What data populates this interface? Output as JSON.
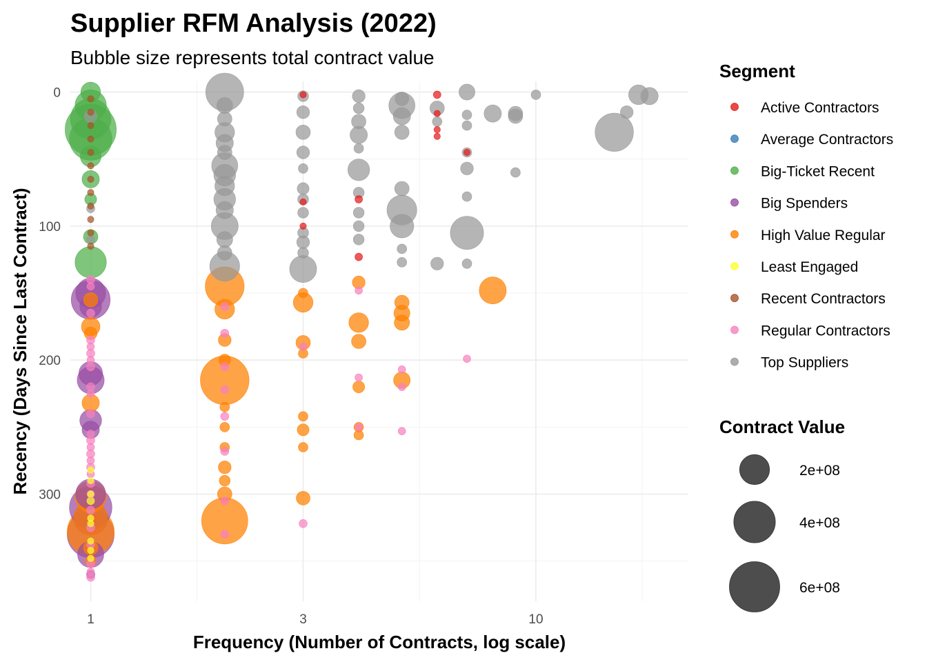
{
  "chart_data": {
    "type": "scatter",
    "title": "Supplier RFM Analysis (2022)",
    "subtitle": "Bubble size represents total contract value",
    "xlabel": "Frequency (Number of Contracts, log scale)",
    "ylabel": "Recency (Days Since Last Contract)",
    "x_scale": "log",
    "y_reversed": true,
    "xlim": [
      0.9,
      22
    ],
    "ylim": [
      -8,
      380
    ],
    "x_ticks": [
      {
        "value": 1,
        "label": "1"
      },
      {
        "value": 3,
        "label": "3"
      },
      {
        "value": 10,
        "label": "10"
      }
    ],
    "y_ticks": [
      {
        "value": 0,
        "label": "0"
      },
      {
        "value": 100,
        "label": "100"
      },
      {
        "value": 200,
        "label": "200"
      },
      {
        "value": 300,
        "label": "300"
      }
    ],
    "grid": true,
    "legend_position": "right",
    "segment_legend_title": "Segment",
    "size_legend_title": "Contract Value",
    "size_legend": [
      {
        "label": "2e+08",
        "value": 200000000
      },
      {
        "label": "4e+08",
        "value": 400000000
      },
      {
        "label": "6e+08",
        "value": 600000000
      }
    ],
    "series": [
      {
        "name": "Active Contractors",
        "color": "#E41A1C",
        "points": [
          [
            3,
            2,
            5000000
          ],
          [
            3,
            82,
            5000000
          ],
          [
            3,
            100,
            5000000
          ],
          [
            4,
            80,
            8000000
          ],
          [
            4,
            123,
            8000000
          ],
          [
            6,
            2,
            8000000
          ],
          [
            6,
            16,
            5000000
          ],
          [
            6,
            28,
            5000000
          ],
          [
            6,
            33,
            5000000
          ],
          [
            7,
            45,
            5000000
          ]
        ]
      },
      {
        "name": "Average Contractors",
        "color": "#377EB8",
        "points": []
      },
      {
        "name": "Big-Ticket Recent",
        "color": "#4DAF4A",
        "points": [
          [
            1,
            0,
            80000000
          ],
          [
            1,
            10,
            220000000
          ],
          [
            1,
            20,
            380000000
          ],
          [
            1,
            28,
            620000000
          ],
          [
            1,
            35,
            420000000
          ],
          [
            1,
            48,
            90000000
          ],
          [
            1,
            65,
            60000000
          ],
          [
            1,
            80,
            25000000
          ],
          [
            1,
            108,
            40000000
          ],
          [
            1,
            127,
            220000000
          ]
        ]
      },
      {
        "name": "Big Spenders",
        "color": "#984EA3",
        "points": [
          [
            1,
            150,
            200000000
          ],
          [
            1,
            155,
            350000000
          ],
          [
            1,
            160,
            100000000
          ],
          [
            1,
            210,
            120000000
          ],
          [
            1,
            215,
            160000000
          ],
          [
            1,
            245,
            100000000
          ],
          [
            1,
            252,
            60000000
          ],
          [
            1,
            300,
            200000000
          ],
          [
            1,
            310,
            420000000
          ],
          [
            1,
            318,
            260000000
          ],
          [
            1,
            330,
            520000000
          ],
          [
            1,
            345,
            150000000
          ],
          [
            1,
            360,
            10000000
          ]
        ]
      },
      {
        "name": "High Value Regular",
        "color": "#FF7F00",
        "points": [
          [
            1,
            155,
            40000000
          ],
          [
            1,
            175,
            70000000
          ],
          [
            1,
            180,
            30000000
          ],
          [
            1,
            232,
            60000000
          ],
          [
            1,
            302,
            220000000
          ],
          [
            1,
            318,
            260000000
          ],
          [
            1,
            328,
            520000000
          ],
          [
            1,
            340,
            40000000
          ],
          [
            1,
            350,
            20000000
          ],
          [
            2,
            145,
            350000000
          ],
          [
            2,
            162,
            80000000
          ],
          [
            2,
            185,
            30000000
          ],
          [
            2,
            200,
            25000000
          ],
          [
            2,
            215,
            560000000
          ],
          [
            2,
            235,
            15000000
          ],
          [
            2,
            250,
            15000000
          ],
          [
            2,
            265,
            15000000
          ],
          [
            2,
            280,
            30000000
          ],
          [
            2,
            290,
            20000000
          ],
          [
            2,
            300,
            40000000
          ],
          [
            2,
            320,
            500000000
          ],
          [
            3,
            150,
            15000000
          ],
          [
            3,
            157,
            80000000
          ],
          [
            3,
            187,
            40000000
          ],
          [
            3,
            195,
            15000000
          ],
          [
            3,
            242,
            15000000
          ],
          [
            3,
            252,
            25000000
          ],
          [
            3,
            265,
            15000000
          ],
          [
            3,
            303,
            35000000
          ],
          [
            4,
            142,
            30000000
          ],
          [
            4,
            172,
            80000000
          ],
          [
            4,
            186,
            40000000
          ],
          [
            4,
            220,
            25000000
          ],
          [
            4,
            250,
            15000000
          ],
          [
            4,
            256,
            15000000
          ],
          [
            5,
            157,
            40000000
          ],
          [
            5,
            165,
            50000000
          ],
          [
            5,
            172,
            45000000
          ],
          [
            5,
            215,
            55000000
          ],
          [
            8,
            148,
            160000000
          ]
        ]
      },
      {
        "name": "Least Engaged",
        "color": "#FFFF33",
        "points": [
          [
            1,
            282,
            5000000
          ],
          [
            1,
            290,
            5000000
          ],
          [
            1,
            300,
            5000000
          ],
          [
            1,
            305,
            8000000
          ],
          [
            1,
            318,
            5000000
          ],
          [
            1,
            322,
            5000000
          ],
          [
            1,
            335,
            5000000
          ],
          [
            1,
            342,
            5000000
          ],
          [
            1,
            348,
            5000000
          ]
        ]
      },
      {
        "name": "Recent Contractors",
        "color": "#A65628",
        "points": [
          [
            1,
            5,
            5000000
          ],
          [
            1,
            15,
            5000000
          ],
          [
            1,
            25,
            5000000
          ],
          [
            1,
            35,
            5000000
          ],
          [
            1,
            45,
            5000000
          ],
          [
            1,
            55,
            5000000
          ],
          [
            1,
            65,
            5000000
          ],
          [
            1,
            75,
            5000000
          ],
          [
            1,
            85,
            5000000
          ],
          [
            1,
            95,
            5000000
          ],
          [
            1,
            105,
            5000000
          ],
          [
            1,
            115,
            5000000
          ]
        ]
      },
      {
        "name": "Regular Contractors",
        "color": "#F781BF",
        "points": [
          [
            1,
            140,
            10000000
          ],
          [
            1,
            145,
            8000000
          ],
          [
            1,
            165,
            10000000
          ],
          [
            1,
            185,
            10000000
          ],
          [
            1,
            190,
            8000000
          ],
          [
            1,
            195,
            10000000
          ],
          [
            1,
            200,
            8000000
          ],
          [
            1,
            205,
            10000000
          ],
          [
            1,
            220,
            10000000
          ],
          [
            1,
            225,
            8000000
          ],
          [
            1,
            240,
            10000000
          ],
          [
            1,
            255,
            8000000
          ],
          [
            1,
            260,
            10000000
          ],
          [
            1,
            265,
            8000000
          ],
          [
            1,
            270,
            10000000
          ],
          [
            1,
            275,
            8000000
          ],
          [
            1,
            280,
            10000000
          ],
          [
            1,
            285,
            8000000
          ],
          [
            1,
            292,
            10000000
          ],
          [
            1,
            300,
            8000000
          ],
          [
            1,
            312,
            10000000
          ],
          [
            1,
            325,
            10000000
          ],
          [
            1,
            338,
            8000000
          ],
          [
            1,
            352,
            10000000
          ],
          [
            1,
            358,
            8000000
          ],
          [
            1,
            362,
            10000000
          ],
          [
            2,
            160,
            10000000
          ],
          [
            2,
            180,
            10000000
          ],
          [
            2,
            205,
            10000000
          ],
          [
            2,
            222,
            10000000
          ],
          [
            2,
            242,
            10000000
          ],
          [
            2,
            268,
            10000000
          ],
          [
            2,
            305,
            10000000
          ],
          [
            2,
            330,
            10000000
          ],
          [
            3,
            190,
            8000000
          ],
          [
            3,
            322,
            10000000
          ],
          [
            4,
            148,
            8000000
          ],
          [
            4,
            213,
            8000000
          ],
          [
            4,
            250,
            8000000
          ],
          [
            5,
            207,
            8000000
          ],
          [
            5,
            220,
            8000000
          ],
          [
            5,
            253,
            8000000
          ],
          [
            7,
            199,
            8000000
          ]
        ]
      },
      {
        "name": "Top Suppliers",
        "color": "#999999",
        "points": [
          [
            1,
            18,
            30000000
          ],
          [
            1,
            87,
            10000000
          ],
          [
            1,
            110,
            10000000
          ],
          [
            2,
            0,
            330000000
          ],
          [
            2,
            10,
            50000000
          ],
          [
            2,
            20,
            40000000
          ],
          [
            2,
            30,
            80000000
          ],
          [
            2,
            38,
            60000000
          ],
          [
            2,
            45,
            40000000
          ],
          [
            2,
            55,
            150000000
          ],
          [
            2,
            62,
            100000000
          ],
          [
            2,
            70,
            80000000
          ],
          [
            2,
            80,
            100000000
          ],
          [
            2,
            88,
            60000000
          ],
          [
            2,
            100,
            160000000
          ],
          [
            2,
            110,
            50000000
          ],
          [
            2,
            120,
            40000000
          ],
          [
            2,
            130,
            200000000
          ],
          [
            3,
            3,
            20000000
          ],
          [
            3,
            15,
            30000000
          ],
          [
            3,
            30,
            40000000
          ],
          [
            3,
            45,
            30000000
          ],
          [
            3,
            57,
            15000000
          ],
          [
            3,
            72,
            25000000
          ],
          [
            3,
            80,
            20000000
          ],
          [
            3,
            90,
            20000000
          ],
          [
            3,
            105,
            20000000
          ],
          [
            3,
            112,
            30000000
          ],
          [
            3,
            120,
            20000000
          ],
          [
            3,
            132,
            160000000
          ],
          [
            4,
            3,
            30000000
          ],
          [
            4,
            12,
            20000000
          ],
          [
            4,
            22,
            40000000
          ],
          [
            4,
            32,
            60000000
          ],
          [
            4,
            42,
            15000000
          ],
          [
            4,
            58,
            100000000
          ],
          [
            4,
            75,
            20000000
          ],
          [
            4,
            90,
            20000000
          ],
          [
            4,
            100,
            20000000
          ],
          [
            4,
            110,
            20000000
          ],
          [
            5,
            5,
            35000000
          ],
          [
            5,
            10,
            150000000
          ],
          [
            5,
            18,
            60000000
          ],
          [
            5,
            30,
            40000000
          ],
          [
            5,
            72,
            40000000
          ],
          [
            5,
            88,
            200000000
          ],
          [
            5,
            100,
            120000000
          ],
          [
            5,
            117,
            15000000
          ],
          [
            5,
            127,
            15000000
          ],
          [
            6,
            12,
            40000000
          ],
          [
            6,
            22,
            15000000
          ],
          [
            6,
            128,
            30000000
          ],
          [
            7,
            0,
            50000000
          ],
          [
            7,
            17,
            15000000
          ],
          [
            7,
            25,
            15000000
          ],
          [
            7,
            45,
            15000000
          ],
          [
            7,
            57,
            30000000
          ],
          [
            7,
            78,
            15000000
          ],
          [
            7,
            105,
            250000000
          ],
          [
            7,
            128,
            15000000
          ],
          [
            8,
            16,
            60000000
          ],
          [
            9,
            16,
            40000000
          ],
          [
            9,
            18,
            40000000
          ],
          [
            9,
            60,
            15000000
          ],
          [
            10,
            2,
            15000000
          ],
          [
            15,
            30,
            340000000
          ],
          [
            16,
            15,
            30000000
          ],
          [
            17,
            2,
            80000000
          ],
          [
            18,
            3,
            60000000
          ]
        ]
      }
    ]
  }
}
